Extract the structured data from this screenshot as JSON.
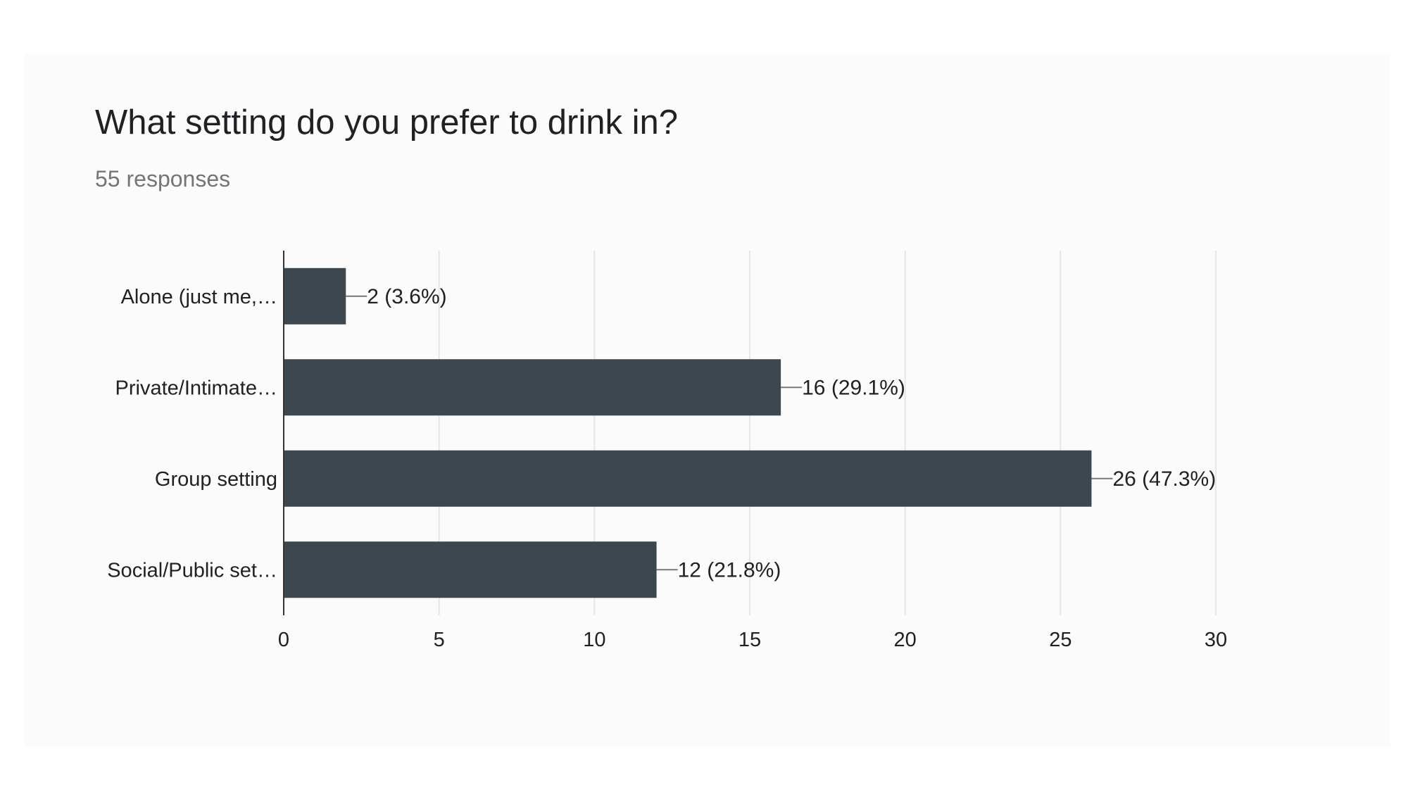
{
  "chart_data": {
    "type": "bar",
    "orientation": "horizontal",
    "title": "What setting do you prefer to drink in?",
    "subtitle": "55 responses",
    "categories": [
      "Alone (just me,…",
      "Private/Intimate…",
      "Group setting",
      "Social/Public set…"
    ],
    "values": [
      2,
      16,
      26,
      12
    ],
    "data_labels": [
      "2 (3.6%)",
      "16 (29.1%)",
      "26 (47.3%)",
      "12 (21.8%)"
    ],
    "xlim": [
      0,
      30
    ],
    "xticks": [
      0,
      5,
      10,
      15,
      20,
      25,
      30
    ],
    "grid": true,
    "legend": "none"
  },
  "colors": {
    "bar": "#3d4750",
    "grid": "#e6e6e6",
    "axis": "#333333",
    "leader": "#777777"
  }
}
